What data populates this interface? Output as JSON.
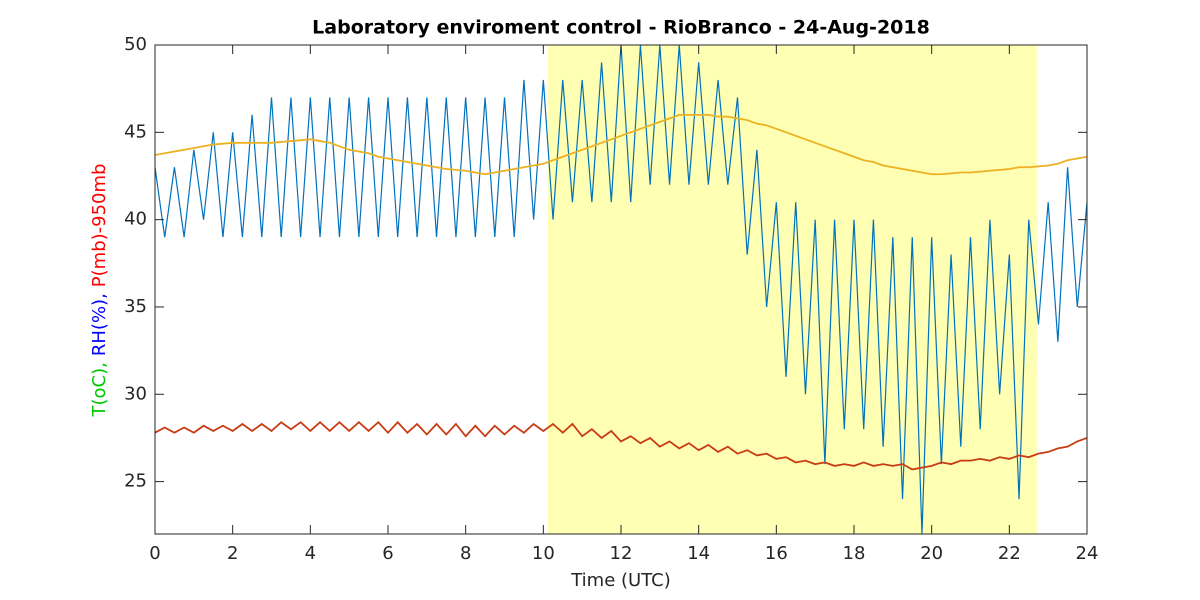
{
  "chart_data": {
    "type": "line",
    "title": "Laboratory enviroment control - RioBranco - 24-Aug-2018",
    "xlabel": "Time (UTC)",
    "ylabel": [
      {
        "text": "T(oC),",
        "color": "#00c800"
      },
      {
        "text": "RH(%),",
        "color": "#0000ff"
      },
      {
        "text": "P(mb)-950mb",
        "color": "#ff0000"
      }
    ],
    "shade": {
      "x": [
        10.12,
        22.71
      ],
      "color": "#ffffb4"
    },
    "xlim": [
      0,
      24
    ],
    "xticks": [
      0,
      2,
      4,
      6,
      8,
      10,
      12,
      14,
      16,
      18,
      20,
      22,
      24
    ],
    "ylim": [
      22,
      50
    ],
    "yticks": [
      25,
      30,
      35,
      40,
      45,
      50
    ],
    "x": [
      0,
      0.25,
      0.5,
      0.75,
      1,
      1.25,
      1.5,
      1.75,
      2,
      2.25,
      2.5,
      2.75,
      3,
      3.25,
      3.5,
      3.75,
      4,
      4.25,
      4.5,
      4.75,
      5,
      5.25,
      5.5,
      5.75,
      6,
      6.25,
      6.5,
      6.75,
      7,
      7.25,
      7.5,
      7.75,
      8,
      8.25,
      8.5,
      8.75,
      9,
      9.25,
      9.5,
      9.75,
      10,
      10.25,
      10.5,
      10.75,
      11,
      11.25,
      11.5,
      11.75,
      12,
      12.25,
      12.5,
      12.75,
      13,
      13.25,
      13.5,
      13.75,
      14,
      14.25,
      14.5,
      14.75,
      15,
      15.25,
      15.5,
      15.75,
      16,
      16.25,
      16.5,
      16.75,
      17,
      17.25,
      17.5,
      17.75,
      18,
      18.25,
      18.5,
      18.75,
      19,
      19.25,
      19.5,
      19.75,
      20,
      20.25,
      20.5,
      20.75,
      21,
      21.25,
      21.5,
      21.75,
      22,
      22.25,
      22.5,
      22.75,
      23,
      23.25,
      23.5,
      23.75,
      24
    ],
    "series": [
      {
        "color": "#0072bd",
        "values": [
          43,
          39,
          43,
          39,
          44,
          40,
          45,
          39,
          45,
          39,
          46,
          39,
          47,
          39,
          47,
          39,
          47,
          39,
          47,
          39,
          47,
          39,
          47,
          39,
          47,
          39,
          47,
          39,
          47,
          39,
          47,
          39,
          47,
          39,
          47,
          39,
          47,
          39,
          48,
          40,
          48,
          40,
          48,
          41,
          48,
          41,
          49,
          41,
          50,
          41,
          50,
          42,
          50,
          42,
          50,
          42,
          49,
          42,
          48,
          42,
          47,
          38,
          44,
          35,
          41,
          31,
          41,
          30,
          40,
          26,
          40,
          28,
          40,
          28,
          40,
          27,
          39,
          24,
          39,
          22,
          39,
          26,
          38,
          27,
          39,
          28,
          40,
          30,
          38,
          24,
          40,
          34,
          41,
          33,
          43,
          35,
          41
        ]
      },
      {
        "color": "#edb120",
        "values": [
          43.7,
          43.8,
          43.9,
          44.0,
          44.1,
          44.2,
          44.3,
          44.35,
          44.4,
          44.4,
          44.4,
          44.4,
          44.4,
          44.45,
          44.5,
          44.55,
          44.6,
          44.5,
          44.4,
          44.2,
          44.0,
          43.9,
          43.8,
          43.6,
          43.5,
          43.4,
          43.3,
          43.2,
          43.1,
          43.0,
          42.9,
          42.85,
          42.8,
          42.7,
          42.6,
          42.7,
          42.8,
          42.9,
          43.0,
          43.1,
          43.2,
          43.4,
          43.6,
          43.8,
          44.0,
          44.2,
          44.4,
          44.6,
          44.8,
          45.0,
          45.2,
          45.4,
          45.6,
          45.8,
          46.0,
          46.0,
          46.0,
          46.0,
          45.9,
          45.9,
          45.8,
          45.7,
          45.5,
          45.4,
          45.2,
          45.0,
          44.8,
          44.6,
          44.4,
          44.2,
          44.0,
          43.8,
          43.6,
          43.4,
          43.3,
          43.1,
          43.0,
          42.9,
          42.8,
          42.7,
          42.6,
          42.6,
          42.65,
          42.7,
          42.7,
          42.75,
          42.8,
          42.85,
          42.9,
          43.0,
          43.0,
          43.05,
          43.1,
          43.2,
          43.4,
          43.5,
          43.6
        ]
      },
      {
        "color": "#c83c14",
        "values": [
          27.8,
          28.1,
          27.8,
          28.1,
          27.8,
          28.2,
          27.9,
          28.2,
          27.9,
          28.3,
          27.9,
          28.3,
          27.9,
          28.4,
          28.0,
          28.4,
          27.9,
          28.4,
          27.9,
          28.4,
          27.9,
          28.4,
          27.9,
          28.4,
          27.8,
          28.4,
          27.8,
          28.3,
          27.7,
          28.3,
          27.7,
          28.3,
          27.6,
          28.2,
          27.6,
          28.2,
          27.7,
          28.2,
          27.8,
          28.3,
          27.9,
          28.3,
          27.8,
          28.3,
          27.6,
          28.0,
          27.5,
          27.9,
          27.3,
          27.6,
          27.2,
          27.5,
          27.0,
          27.3,
          26.9,
          27.2,
          26.8,
          27.1,
          26.7,
          27.0,
          26.6,
          26.8,
          26.5,
          26.6,
          26.3,
          26.4,
          26.1,
          26.2,
          26.0,
          26.1,
          25.9,
          26.0,
          25.9,
          26.1,
          25.9,
          26.0,
          25.9,
          26.0,
          25.7,
          25.8,
          25.9,
          26.1,
          26.0,
          26.2,
          26.2,
          26.3,
          26.2,
          26.4,
          26.3,
          26.5,
          26.4,
          26.6,
          26.7,
          26.9,
          27.0,
          27.3,
          27.5
        ]
      }
    ]
  }
}
